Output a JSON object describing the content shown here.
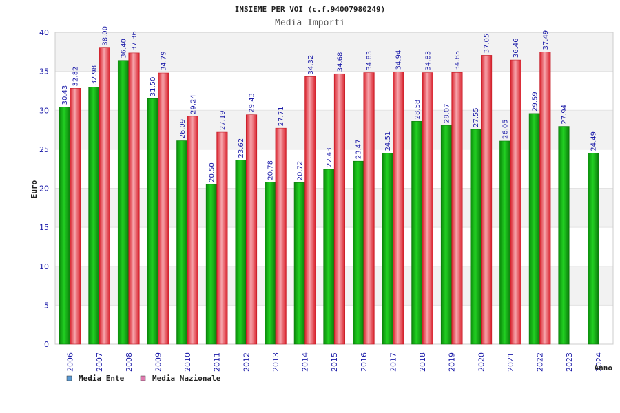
{
  "chart_data": {
    "type": "bar",
    "title": "INSIEME PER VOI (c.f.94007980249)",
    "subtitle": "Media Importi",
    "xlabel": "Anno",
    "ylabel": "Euro",
    "ylim": [
      0,
      40
    ],
    "yticks": [
      0,
      5,
      10,
      15,
      20,
      25,
      30,
      35,
      40
    ],
    "grid": true,
    "legend_position": "bottom-left",
    "categories": [
      "2006",
      "2007",
      "2008",
      "2009",
      "2010",
      "2011",
      "2012",
      "2013",
      "2014",
      "2015",
      "2016",
      "2017",
      "2018",
      "2019",
      "2020",
      "2021",
      "2022",
      "2023",
      "2024"
    ],
    "series": [
      {
        "name": "Media Ente",
        "legend_color": "#5b9bd5",
        "bar_color": "#11b011",
        "values": [
          30.43,
          32.98,
          36.4,
          31.5,
          26.09,
          20.5,
          23.62,
          20.78,
          20.72,
          22.43,
          23.47,
          24.51,
          28.58,
          28.07,
          27.55,
          26.05,
          29.59,
          27.94,
          24.49
        ],
        "labels": [
          "30.43",
          "32.98",
          "36.40",
          "31.50",
          "26.09",
          "20.50",
          "23.62",
          "20.78",
          "20.72",
          "22.43",
          "23.47",
          "24.51",
          "28.58",
          "28.07",
          "27.55",
          "26.05",
          "29.59",
          "27.94",
          "24.49"
        ]
      },
      {
        "name": "Media Nazionale",
        "legend_color": "#e07bb0",
        "bar_color": "#e8353f",
        "values": [
          32.82,
          38.0,
          37.36,
          34.79,
          29.24,
          27.19,
          29.43,
          27.71,
          34.32,
          34.68,
          34.83,
          34.94,
          34.83,
          34.85,
          37.05,
          36.46,
          37.49,
          null,
          null
        ],
        "labels": [
          "32.82",
          "38.00",
          "37.36",
          "34.79",
          "29.24",
          "27.19",
          "29.43",
          "27.71",
          "34.32",
          "34.68",
          "34.83",
          "34.94",
          "34.83",
          "34.85",
          "37.05",
          "36.46",
          "37.49",
          null,
          null
        ]
      }
    ]
  }
}
